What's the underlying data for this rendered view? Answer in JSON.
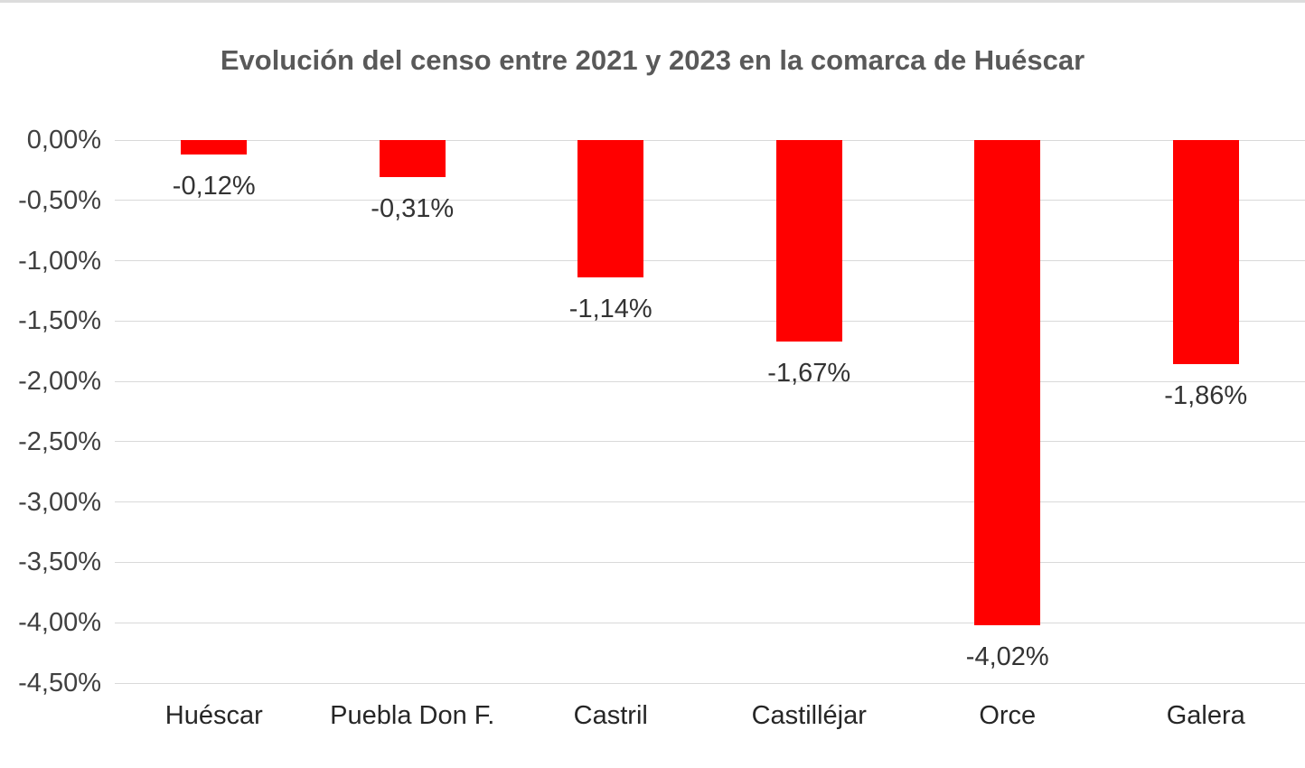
{
  "page": {
    "background_color": "#ffffff",
    "top_border_color": "#dcdcdc"
  },
  "chart_data": {
    "type": "bar",
    "title": "Evolución del censo entre 2021 y 2023 en la comarca de Huéscar",
    "categories": [
      "Huéscar",
      "Puebla Don F.",
      "Castril",
      "Castilléjar",
      "Orce",
      "Galera"
    ],
    "values": [
      -0.12,
      -0.31,
      -1.14,
      -1.67,
      -4.02,
      -1.86
    ],
    "value_labels": [
      "-0,12%",
      "-0,31%",
      "-1,14%",
      "-1,67%",
      "-4,02%",
      "-1,86%"
    ],
    "y_tick_values": [
      0.0,
      -0.5,
      -1.0,
      -1.5,
      -2.0,
      -2.5,
      -3.0,
      -3.5,
      -4.0,
      -4.5
    ],
    "y_tick_labels": [
      "0,00%",
      "-0,50%",
      "-1,00%",
      "-1,50%",
      "-2,00%",
      "-2,50%",
      "-3,00%",
      "-3,50%",
      "-4,00%",
      "-4,50%"
    ],
    "ylim": [
      -4.5,
      0
    ],
    "xlabel": "",
    "ylabel": "",
    "grid": true,
    "legend_position": "none",
    "bar_color": "#ff0000",
    "gridline_color": "#d9d9d9",
    "title_color": "#595959",
    "axis_text_color": "#404040",
    "data_label_color": "#333333"
  }
}
